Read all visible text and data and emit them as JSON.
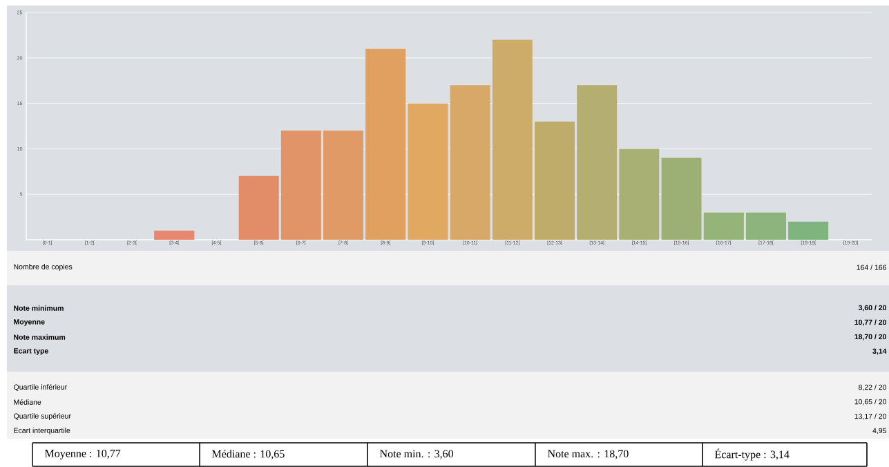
{
  "chart_data": {
    "type": "bar",
    "categories": [
      "[0-1[",
      "[1-2[",
      "[2-3[",
      "[3-4[",
      "[4-5[",
      "[5-6[",
      "[6-7[",
      "[7-8[",
      "[8-9[",
      "[9-10[",
      "[10-11[",
      "[11-12[",
      "[12-13[",
      "[13-14[",
      "[14-15[",
      "[15-16[",
      "[16-17[",
      "[17-18[",
      "[18-19[",
      "[19-20]"
    ],
    "values": [
      0,
      0,
      0,
      1,
      0,
      7,
      12,
      12,
      21,
      15,
      17,
      22,
      13,
      17,
      10,
      9,
      3,
      3,
      2,
      0
    ],
    "colors": [
      "#e8846f",
      "#e8866e",
      "#e8866e",
      "#e8876f",
      "#e48a6b",
      "#e28c68",
      "#e09468",
      "#e09a65",
      "#e0a060",
      "#e0a860",
      "#d8a868",
      "#ccac68",
      "#c0ac6a",
      "#b4ae70",
      "#a8b074",
      "#9cb076",
      "#94b47a",
      "#8cb47c",
      "#80b47e",
      "#7cb47e"
    ],
    "ylim": [
      0,
      25
    ],
    "yticks": [
      5,
      10,
      15,
      20,
      25
    ],
    "grid": "y",
    "annotations": [
      "Nombre de copies",
      "164 / 166",
      "Note minimum",
      "Moyenne",
      "Note maximum",
      "Ecart type",
      "3,60 / 20",
      "10,77 / 20",
      "18,70 / 20",
      "3,14",
      "Quartile inférieur",
      "Médiane",
      "Quartile supérieur",
      "Ecart interquartile",
      "8,22 / 20",
      "10,65 / 20",
      "13,17 / 20",
      "4,95",
      "Moyenne : 10,77",
      "Médiane : 10,65",
      "Note min. : 3,60",
      "Note max. : 18,70",
      "Écart-type : 3,14"
    ]
  }
}
